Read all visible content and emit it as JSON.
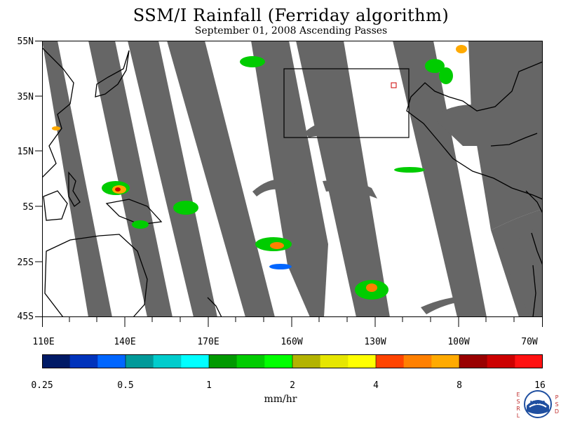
{
  "header": {
    "title": "SSM/I Rainfall (Ferriday algorithm)",
    "subtitle": "September 01, 2008  Ascending Passes"
  },
  "map": {
    "lat_labels": [
      "55N",
      "35N",
      "15N",
      "5S",
      "25S",
      "45S"
    ],
    "lon_labels": [
      "110E",
      "140E",
      "170E",
      "160W",
      "130W",
      "100W",
      "70W"
    ],
    "colors": {
      "swath_gap": "#666666",
      "land_outline": "#000000",
      "box": "#000000"
    }
  },
  "colorbar": {
    "labels": [
      "0.25",
      "0.5",
      "1",
      "2",
      "4",
      "8",
      "16"
    ],
    "units": "mm/hr",
    "colors": [
      "#001a66",
      "#0033bb",
      "#0066ff",
      "#009999",
      "#00cccc",
      "#00ffff",
      "#009900",
      "#00cc00",
      "#00ff00",
      "#b3b300",
      "#e6e600",
      "#ffff00",
      "#ff4400",
      "#ff8000",
      "#ffaa00",
      "#990000",
      "#cc0000",
      "#ff1111"
    ]
  },
  "logo": {
    "left_text": "ESRL",
    "right_text": "PSD",
    "emblem_text": "NOAA"
  }
}
